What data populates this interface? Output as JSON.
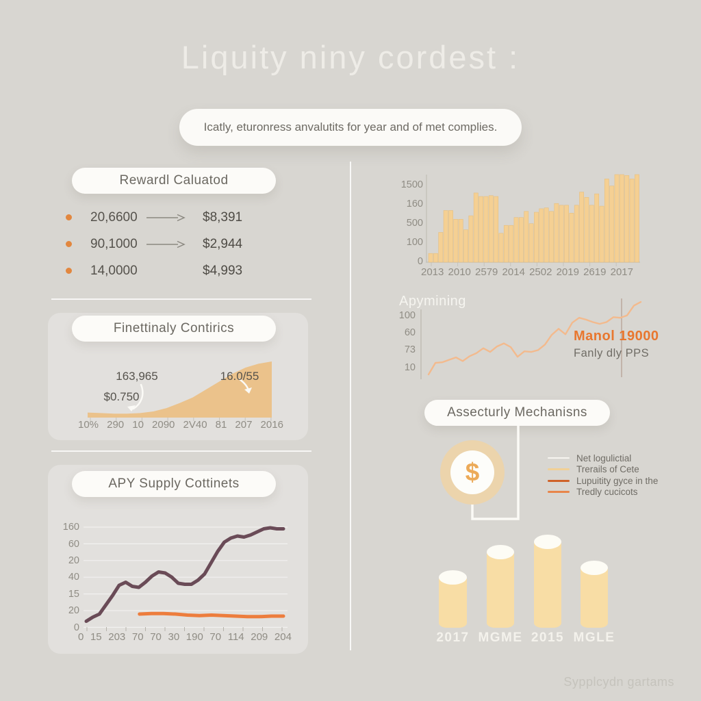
{
  "header": {
    "title": "Liquity niny cordest :",
    "subtitle": "Icatly, eturonress anvalutits for year and of met complies."
  },
  "footer": "Sypplcydn gartams",
  "reward": {
    "header": "Rewardl Caluatod",
    "rows": [
      {
        "amount": "20,6600",
        "value": "$8,391",
        "arrow": true
      },
      {
        "amount": "90,1000",
        "value": "$2,944",
        "arrow": true
      },
      {
        "amount": "14,0000",
        "value": "$4,993",
        "arrow": false
      }
    ]
  },
  "finettinaly": {
    "header": "Finettinaly Contirics",
    "annotations": [
      "163,965",
      "$0.750",
      "16.0/55"
    ]
  },
  "apy_supply": {
    "header": "APY Supply Cottinets"
  },
  "apymining": {
    "title": "Apymining",
    "annotation_value": "Manol 19000",
    "annotation_label": "Fanly dly PPS"
  },
  "mechanisms": {
    "header": "Assecturly Mechanisns",
    "coin_symbol": "$",
    "legend": [
      {
        "label": "Net logulictial",
        "color": "#f7f5f0"
      },
      {
        "label": "Trerails of Cete",
        "color": "#f1d096"
      },
      {
        "label": "Lupuitity gyce in the",
        "color": "#cf6228"
      },
      {
        "label": "Tredly cucicots",
        "color": "#e8854a"
      }
    ]
  },
  "chart_data": [
    {
      "id": "volume_bars",
      "type": "bar",
      "title": "",
      "ylabel": "",
      "ylim": [
        0,
        1500
      ],
      "y_ticks": [
        "1500",
        "160",
        "500",
        "100",
        "0"
      ],
      "x_ticks": [
        "2013",
        "2010",
        "2579",
        "2014",
        "2502",
        "2019",
        "2619",
        "2017"
      ],
      "bar_color": "#f5d093",
      "bar_stroke": "#e5bf80",
      "values": [
        150,
        150,
        510,
        885,
        885,
        735,
        735,
        555,
        795,
        1185,
        1125,
        1125,
        1140,
        1125,
        495,
        630,
        630,
        765,
        765,
        870,
        660,
        855,
        915,
        930,
        870,
        1005,
        975,
        975,
        840,
        975,
        1200,
        1110,
        975,
        1170,
        960,
        1425,
        1305,
        1500,
        1500,
        1485,
        1425,
        1500
      ]
    },
    {
      "id": "apymining_line",
      "type": "line",
      "ylim": [
        0,
        130
      ],
      "y_ticks": [
        "100",
        "60",
        "73",
        "10"
      ],
      "line_color": "#f3ba8d",
      "marker_line_color": "#b49e8f",
      "values": [
        7,
        26,
        27,
        31,
        35,
        29,
        37,
        42,
        50,
        44,
        53,
        58,
        52,
        36,
        45,
        44,
        47,
        56,
        72,
        82,
        73,
        92,
        100,
        97,
        93,
        90,
        93,
        101,
        100,
        104,
        120,
        126
      ]
    },
    {
      "id": "finettinaly_area",
      "type": "area",
      "x_ticks": [
        "10%",
        "290",
        "10",
        "2090",
        "2V40",
        "81",
        "207",
        "2016"
      ],
      "fill_color": "#ebc28b",
      "values": [
        0.09,
        0.08,
        0.07,
        0.07,
        0.08,
        0.11,
        0.17,
        0.26,
        0.36,
        0.5,
        0.64,
        0.78,
        0.89,
        0.96,
        1.0
      ]
    },
    {
      "id": "apy_supply_lines",
      "type": "line",
      "y_ticks": [
        "160",
        "60",
        "20",
        "40",
        "15",
        "20",
        "0"
      ],
      "x_ticks": [
        "0",
        "15",
        "203",
        "70",
        "70",
        "30",
        "190",
        "70",
        "114",
        "209",
        "204"
      ],
      "grid": true,
      "series": [
        {
          "name": "supply",
          "color": "#6a4b57",
          "width": 5,
          "values": [
            0.05,
            0.09,
            0.12,
            0.21,
            0.3,
            0.4,
            0.43,
            0.39,
            0.38,
            0.43,
            0.49,
            0.53,
            0.52,
            0.48,
            0.42,
            0.41,
            0.41,
            0.45,
            0.51,
            0.62,
            0.73,
            0.82,
            0.86,
            0.88,
            0.87,
            0.89,
            0.92,
            0.95,
            0.96,
            0.95,
            0.95
          ]
        },
        {
          "name": "apy",
          "color": "#ed7d3d",
          "width": 5,
          "x_start": 0.27,
          "values": [
            0.12,
            0.125,
            0.125,
            0.12,
            0.11,
            0.105,
            0.11,
            0.105,
            0.1,
            0.095,
            0.095,
            0.1,
            0.1
          ]
        }
      ]
    },
    {
      "id": "cylinders",
      "type": "bar",
      "categories": [
        "2017",
        "MGME",
        "2015",
        "MGLE"
      ],
      "bar_color": "#f8dda5",
      "values": [
        0.61,
        0.89,
        1.0,
        0.72
      ]
    }
  ]
}
